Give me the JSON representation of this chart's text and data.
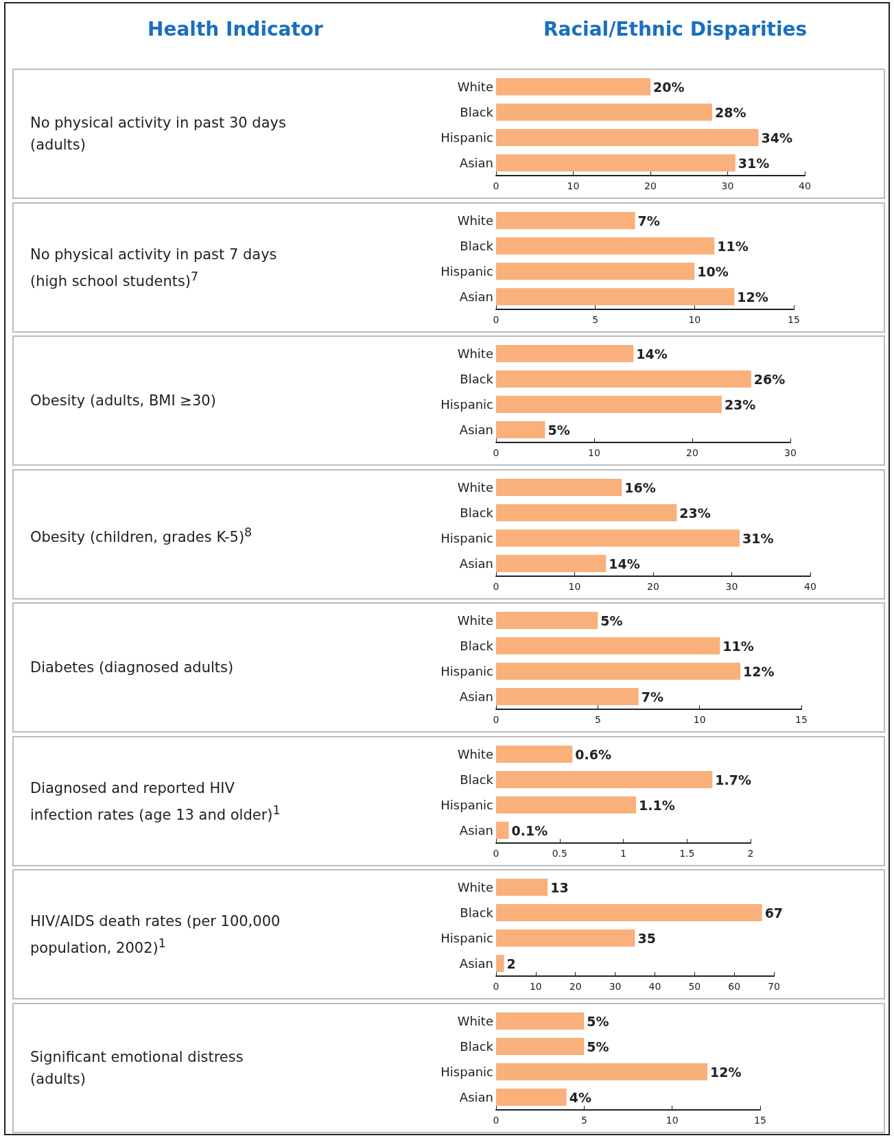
{
  "chart_data": [
    {
      "type": "other",
      "annotations": [
        "Health Indicator",
        "Racial/Ethnic Disparities"
      ]
    },
    {
      "type": "bar",
      "orientation": "horizontal",
      "annotations": [
        "No physical activity in past 30 days (adults)"
      ],
      "categories": [
        "White",
        "Black",
        "Hispanic",
        "Asian"
      ],
      "values": [
        20,
        28,
        34,
        31
      ],
      "value_labels": [
        "20%",
        "28%",
        "34%",
        "31%"
      ],
      "color": "#f9b07b",
      "xlim": [
        0,
        40
      ],
      "xticks": [
        0,
        10,
        20,
        30,
        40
      ]
    },
    {
      "type": "bar",
      "orientation": "horizontal",
      "annotations": [
        "No physical activity in past 7 days (high school students)$^{7}$"
      ],
      "categories": [
        "White",
        "Black",
        "Hispanic",
        "Asian"
      ],
      "values": [
        7,
        11,
        10,
        12
      ],
      "value_labels": [
        "7%",
        "11%",
        "10%",
        "12%"
      ],
      "color": "#f9b07b",
      "xlim": [
        0,
        15
      ],
      "xticks": [
        0,
        5,
        10,
        15
      ]
    },
    {
      "type": "bar",
      "orientation": "horizontal",
      "annotations": [
        "Obesity (adults, BMI ≥30)"
      ],
      "categories": [
        "White",
        "Black",
        "Hispanic",
        "Asian"
      ],
      "values": [
        14,
        26,
        23,
        5
      ],
      "value_labels": [
        "14%",
        "26%",
        "23%",
        "5%"
      ],
      "color": "#f9b07b",
      "xlim": [
        0,
        30
      ],
      "xticks": [
        0,
        10,
        20,
        30
      ]
    },
    {
      "type": "bar",
      "orientation": "horizontal",
      "annotations": [
        "Obesity (children, grades K-5)$^{8}$"
      ],
      "categories": [
        "White",
        "Black",
        "Hispanic",
        "Asian"
      ],
      "values": [
        16,
        23,
        31,
        14
      ],
      "value_labels": [
        "16%",
        "23%",
        "31%",
        "14%"
      ],
      "color": "#f9b07b",
      "xlim": [
        0,
        40
      ],
      "xticks": [
        0,
        10,
        20,
        30,
        40
      ]
    },
    {
      "type": "bar",
      "orientation": "horizontal",
      "annotations": [
        "Diabetes (diagnosed adults)"
      ],
      "categories": [
        "White",
        "Black",
        "Hispanic",
        "Asian"
      ],
      "values": [
        5,
        11,
        12,
        7
      ],
      "value_labels": [
        "5%",
        "11%",
        "12%",
        "7%"
      ],
      "color": "#f9b07b",
      "xlim": [
        0,
        15
      ],
      "xticks": [
        0,
        5,
        10,
        15
      ]
    },
    {
      "type": "bar",
      "orientation": "horizontal",
      "annotations": [
        "Diagnosed and reported HIV infection rates (age 13 and older)$^{1}$"
      ],
      "categories": [
        "White",
        "Black",
        "Hispanic",
        "Asian"
      ],
      "values": [
        0.6,
        1.7,
        1.1,
        0.1
      ],
      "value_labels": [
        "0.6%",
        "1.7%",
        "1.1%",
        "0.1%"
      ],
      "color": "#f9b07b",
      "xlim": [
        0,
        2
      ],
      "xticks": [
        0,
        0.5,
        1,
        1.5,
        2
      ]
    },
    {
      "type": "bar",
      "orientation": "horizontal",
      "annotations": [
        "HIV/AIDS death rates (per 100,000 population, 2002)$^{1}$"
      ],
      "categories": [
        "White",
        "Black",
        "Hispanic",
        "Asian"
      ],
      "values": [
        13,
        67,
        35,
        2
      ],
      "value_labels": [
        "13",
        "67",
        "35",
        "2"
      ],
      "color": "#f9b07b",
      "xlim": [
        0,
        70
      ],
      "xticks": [
        0,
        10,
        20,
        30,
        40,
        50,
        60,
        70
      ]
    },
    {
      "type": "bar",
      "orientation": "horizontal",
      "annotations": [
        "Significant emotional distress (adults)"
      ],
      "categories": [
        "White",
        "Black",
        "Hispanic",
        "Asian"
      ],
      "values": [
        5,
        5,
        12,
        4
      ],
      "value_labels": [
        "5%",
        "5%",
        "12%",
        "4%"
      ],
      "color": "#f9b07b",
      "xlim": [
        0,
        15
      ],
      "xticks": [
        0,
        5,
        10,
        15
      ]
    }
  ]
}
